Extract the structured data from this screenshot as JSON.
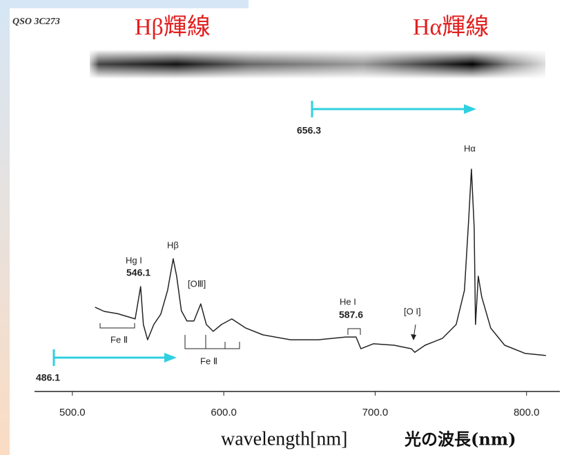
{
  "chart_data": {
    "type": "line",
    "title": "QSO 3C273",
    "headline_left": "Hβ輝線",
    "headline_right": "Hα輝線",
    "x_label": "wavelength[nm]",
    "x_label_ja": "光の波長(nm)",
    "x": [
      515,
      521,
      530,
      541.5,
      545.1,
      546.9,
      549.7,
      553.8,
      558.4,
      562.9,
      566.6,
      568.9,
      572,
      575.7,
      580.3,
      584.8,
      588.5,
      593,
      598.5,
      605.3,
      614.5,
      625.9,
      644.1,
      662.3,
      680.6,
      687.4,
      690.6,
      698.8,
      712.5,
      723.9,
      726.2,
      733,
      744.4,
      753.5,
      759,
      761.7,
      763.6,
      765.4,
      766.3,
      768.1,
      770.4,
      776.3,
      785.5,
      799.1,
      812.8
    ],
    "values": [
      36.8,
      35,
      34,
      31.8,
      45.6,
      29.4,
      22.9,
      29.4,
      33.8,
      44,
      57.4,
      50,
      35.3,
      30.9,
      30.9,
      38.2,
      29.4,
      26.5,
      29.4,
      31.8,
      27.9,
      25,
      22.9,
      22.9,
      24.1,
      24.1,
      19.1,
      21.2,
      20.6,
      19.1,
      17.6,
      20.6,
      23.5,
      29.4,
      44,
      73.5,
      95.6,
      70.6,
      29.4,
      50,
      41.2,
      27.9,
      20.6,
      17.1,
      16.2
    ],
    "color": "#222222",
    "xlim": [
      475,
      822
    ],
    "ylim": [
      0,
      100
    ],
    "xticks": [
      {
        "value": 500,
        "label": "500.0"
      },
      {
        "value": 600,
        "label": "600.0"
      },
      {
        "value": 700,
        "label": "700.0"
      },
      {
        "value": 800,
        "label": "800.0"
      }
    ],
    "annotations": [
      "Hg I",
      "546.1",
      "Hβ",
      "[OⅢ]",
      "Fe Ⅱ",
      "Fe Ⅱ",
      "He I",
      "587.6",
      "[O I]",
      "Hα",
      "656.3",
      "486.1"
    ]
  }
}
